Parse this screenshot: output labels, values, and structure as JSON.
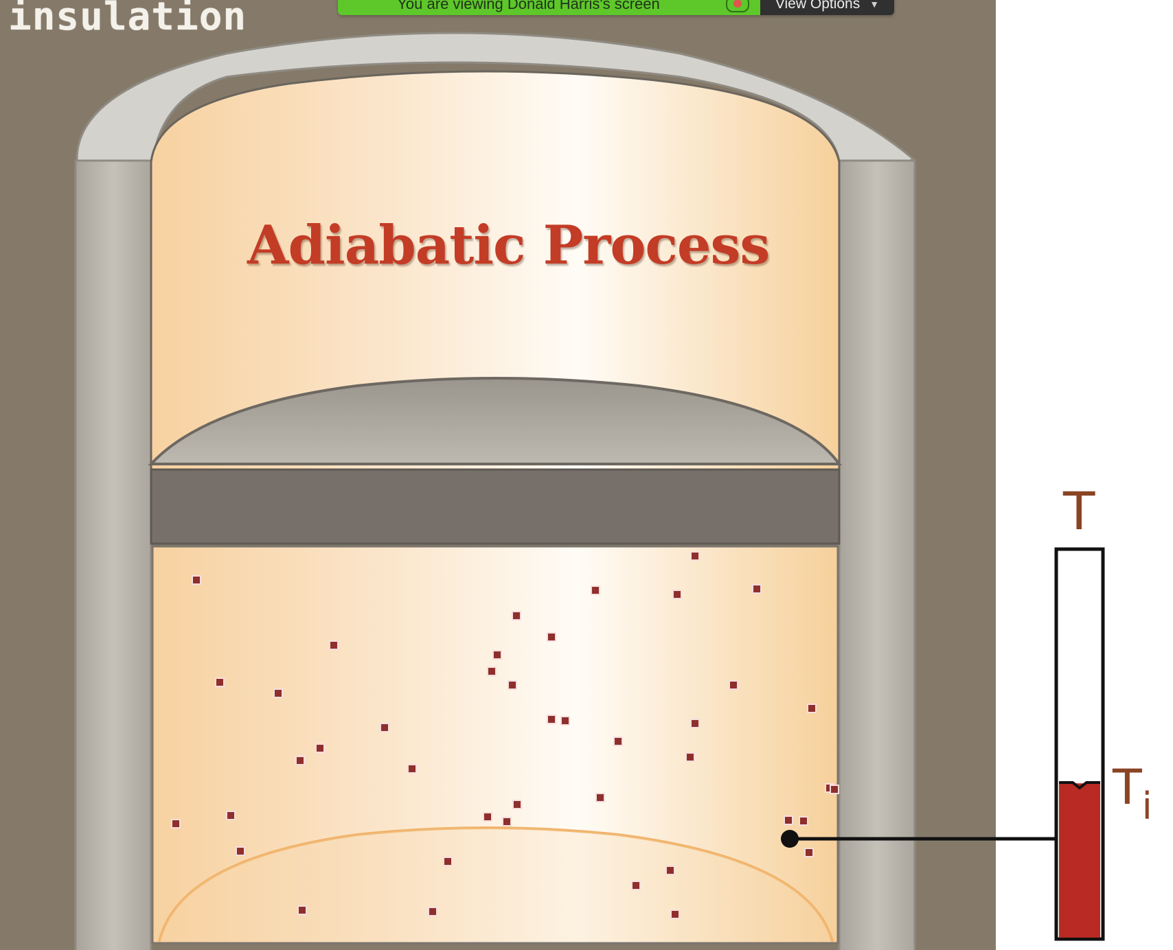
{
  "overlay": {
    "insulation_label": "insulation",
    "share_status": "You are viewing Donald Harris's screen",
    "view_options_label": "View Options"
  },
  "diagram": {
    "title": "Adiabatic Process",
    "thermometer_label": "T",
    "thermometer_initial_label": "T",
    "thermometer_initial_subscript": "i",
    "thermometer_fill_fraction": 0.4,
    "molecule_count": 42
  },
  "colors": {
    "background": "#857a69",
    "insulation": "#b9b6ad",
    "insulation_cap": "#d4d2cc",
    "gas_light": "#fdf5ea",
    "gas_warm": "#f7d5a4",
    "piston": "#77706a",
    "title": "#c33c26",
    "molecule": "#8e2f2c",
    "thermometer_fill": "#b82a23",
    "share_green": "#5ec72a",
    "view_options_bg": "#303030"
  },
  "icons": {
    "chevron": "chevron-down-icon",
    "share_indicator": "share-indicator-icon"
  }
}
